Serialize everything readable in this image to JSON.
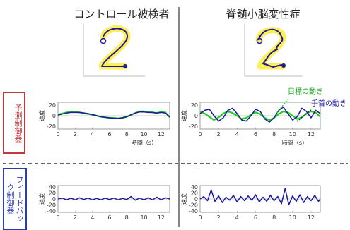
{
  "titles": {
    "left": "コントロール被検者",
    "right": "脊髄小脳変性症"
  },
  "row_labels": {
    "predictive": "予測制御器",
    "feedback": "フィードバック制御器"
  },
  "legend": {
    "target": "目標の動き",
    "wrist": "手首の動き"
  },
  "colors": {
    "target": "#22cc22",
    "wrist": "#1a1a9a",
    "highlight": "#ffee55",
    "predictive": "#c0393b",
    "feedback": "#2b3bb0"
  },
  "chart_data": [
    {
      "id": "pred-control",
      "type": "line",
      "xlabel": "時間（s）",
      "ylabel": "速度",
      "xticks": [
        0,
        2,
        4,
        6,
        8,
        10,
        12
      ],
      "yticks": [
        -20,
        0,
        20
      ],
      "ylim": [
        -25,
        25
      ],
      "xlim": [
        0,
        13
      ],
      "series": [
        {
          "name": "目標の動き",
          "x": [
            0,
            0.5,
            1,
            1.5,
            2,
            2.5,
            3,
            3.5,
            4,
            4.5,
            5,
            5.5,
            6,
            6.5,
            7,
            7.5,
            8,
            8.5,
            9,
            9.5,
            10,
            10.5,
            11,
            11.5,
            12,
            12.5,
            13
          ],
          "y": [
            2,
            4,
            6,
            7,
            7,
            6,
            5,
            3,
            2,
            0,
            -2,
            -3,
            -4,
            -4,
            -5,
            -4,
            -2,
            1,
            5,
            8,
            8,
            7,
            6,
            5,
            7,
            6,
            -3
          ]
        },
        {
          "name": "手首の動き",
          "x": [
            0,
            0.5,
            1,
            1.5,
            2,
            2.5,
            3,
            3.5,
            4,
            4.5,
            5,
            5.5,
            6,
            6.5,
            7,
            7.5,
            8,
            8.5,
            9,
            9.5,
            10,
            10.5,
            11,
            11.5,
            12,
            12.5,
            13
          ],
          "y": [
            1,
            3,
            5,
            6,
            6,
            6,
            5,
            4,
            2,
            0,
            -2,
            -3,
            -4,
            -5,
            -5,
            -4,
            -2,
            2,
            5,
            7,
            7,
            6,
            6,
            5,
            6,
            5,
            -2
          ]
        }
      ]
    },
    {
      "id": "pred-patient",
      "type": "line",
      "xlabel": "時間（s）",
      "ylabel": "速度",
      "xticks": [
        0,
        2,
        4,
        6,
        8,
        10,
        12
      ],
      "yticks": [
        -20,
        0,
        20
      ],
      "ylim": [
        -25,
        25
      ],
      "xlim": [
        0,
        13
      ],
      "series": [
        {
          "name": "目標の動き",
          "x": [
            0,
            0.5,
            1,
            1.5,
            2,
            2.5,
            3,
            3.5,
            4,
            4.5,
            5,
            5.5,
            6,
            6.5,
            7,
            7.5,
            8,
            8.5,
            9,
            9.5,
            10,
            10.5,
            11,
            11.5,
            12,
            12.5,
            13
          ],
          "y": [
            8,
            4,
            -2,
            -8,
            -3,
            4,
            8,
            5,
            0,
            -6,
            -4,
            2,
            6,
            3,
            -4,
            -8,
            -4,
            3,
            8,
            6,
            0,
            -6,
            -3,
            4,
            8,
            6,
            -2
          ]
        },
        {
          "name": "手首の動き",
          "x": [
            0,
            0.5,
            1,
            1.5,
            2,
            2.5,
            3,
            3.5,
            4,
            4.5,
            5,
            5.5,
            6,
            6.5,
            7,
            7.5,
            8,
            8.5,
            9,
            9.5,
            10,
            10.5,
            11,
            11.5,
            12,
            12.5,
            13
          ],
          "y": [
            4,
            10,
            12,
            0,
            -10,
            -4,
            10,
            14,
            4,
            -8,
            -10,
            0,
            12,
            8,
            -6,
            -12,
            -4,
            10,
            16,
            4,
            -8,
            -2,
            14,
            8,
            -4,
            10,
            4
          ]
        }
      ]
    },
    {
      "id": "fb-control",
      "type": "line",
      "xlabel": "時間（s）",
      "ylabel": "速度",
      "xticks": [
        0,
        2,
        4,
        6,
        8,
        10,
        12
      ],
      "yticks": [
        -40,
        -20,
        0,
        20,
        40
      ],
      "ylim": [
        -45,
        45
      ],
      "xlim": [
        0,
        13
      ],
      "series": [
        {
          "name": "手首の動き",
          "x": [
            0,
            0.5,
            1,
            1.5,
            2,
            2.5,
            3,
            3.5,
            4,
            4.5,
            5,
            5.5,
            6,
            6.5,
            7,
            7.5,
            8,
            8.5,
            9,
            9.5,
            10,
            10.5,
            11,
            11.5,
            12,
            12.5,
            13
          ],
          "y": [
            0,
            3,
            -3,
            3,
            -3,
            4,
            -2,
            3,
            -3,
            2,
            -3,
            3,
            -2,
            3,
            -3,
            2,
            -2,
            8,
            -4,
            3,
            -3,
            4,
            -3,
            6,
            -3,
            4,
            0
          ]
        }
      ]
    },
    {
      "id": "fb-patient",
      "type": "line",
      "xlabel": "時間（s）",
      "ylabel": "速度",
      "xticks": [
        0,
        2,
        4,
        6,
        8,
        10,
        12
      ],
      "yticks": [
        -40,
        -20,
        0,
        20,
        40
      ],
      "ylim": [
        -45,
        45
      ],
      "xlim": [
        0,
        13
      ],
      "series": [
        {
          "name": "手首の動き",
          "x": [
            0,
            0.4,
            0.8,
            1.2,
            1.6,
            2,
            2.4,
            2.8,
            3.2,
            3.6,
            4,
            4.4,
            4.8,
            5.2,
            5.6,
            6,
            6.4,
            6.8,
            7.2,
            7.6,
            8,
            8.4,
            8.8,
            9.2,
            9.6,
            10,
            10.4,
            10.8,
            11.2,
            11.6,
            12,
            12.4,
            12.8,
            13
          ],
          "y": [
            0,
            8,
            -6,
            30,
            -8,
            10,
            -12,
            6,
            -4,
            12,
            -10,
            8,
            -6,
            10,
            -4,
            14,
            -10,
            6,
            -8,
            12,
            -6,
            8,
            -16,
            35,
            -20,
            10,
            -8,
            14,
            -12,
            8,
            -6,
            12,
            -8,
            0
          ]
        }
      ]
    }
  ]
}
